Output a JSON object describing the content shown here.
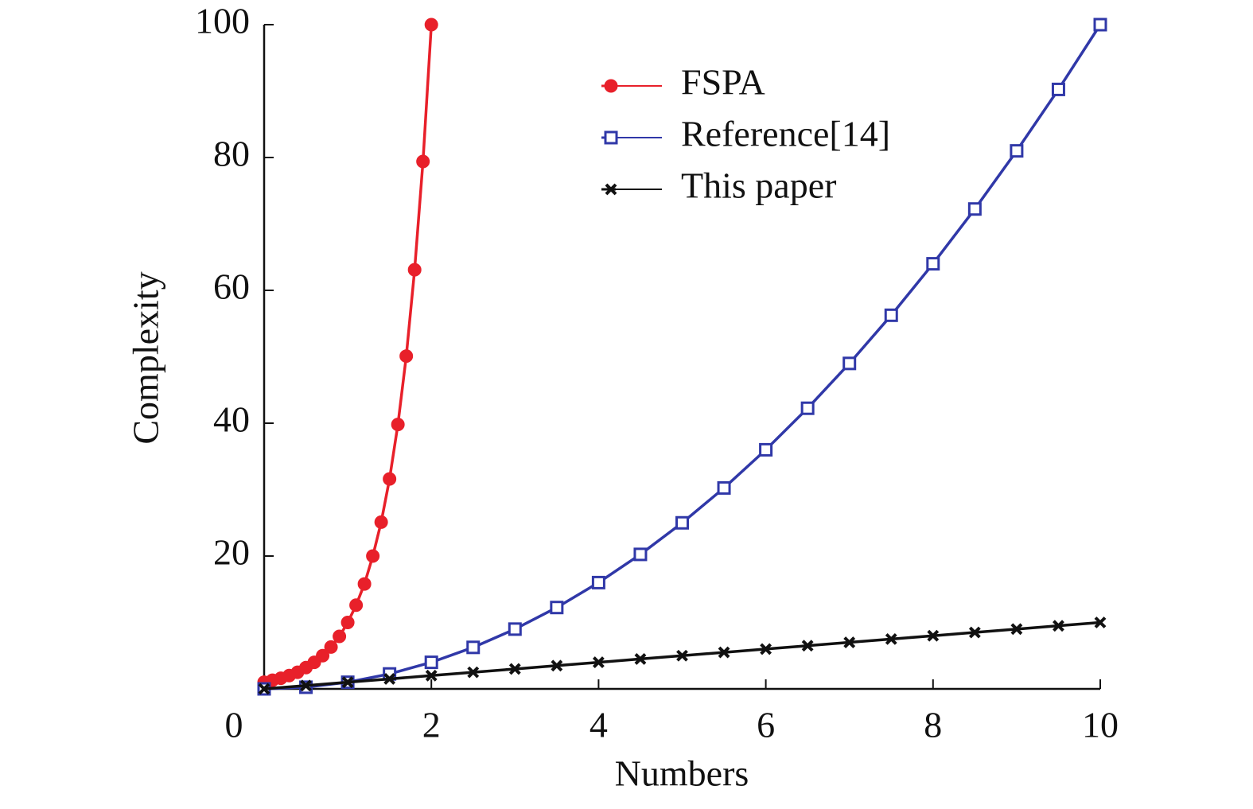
{
  "chart_data": {
    "type": "line",
    "x_label": "Numbers",
    "y_label": "Complexity",
    "xlim": [
      0,
      10
    ],
    "ylim": [
      0,
      100
    ],
    "xticks": [
      0,
      2,
      4,
      6,
      8,
      10
    ],
    "yticks": [
      20,
      40,
      60,
      80,
      100
    ],
    "legend": "upper center",
    "series": [
      {
        "name": "FSPA",
        "color": "#e8202a",
        "marker": "circle",
        "x": [
          0,
          0.1,
          0.2,
          0.3,
          0.4,
          0.5,
          0.6,
          0.7,
          0.8,
          0.9,
          1.0,
          1.1,
          1.2,
          1.3,
          1.4,
          1.5,
          1.6,
          1.7,
          1.8,
          1.9,
          2.0
        ],
        "values": [
          1,
          1.3,
          1.6,
          2.0,
          2.5,
          3.2,
          4.0,
          5.0,
          6.3,
          7.9,
          10,
          12.6,
          15.8,
          20,
          25.1,
          31.6,
          39.8,
          50.1,
          63.1,
          79.4,
          100
        ]
      },
      {
        "name": "Reference[14]",
        "color": "#3038a8",
        "marker": "square",
        "x": [
          0,
          0.5,
          1,
          1.5,
          2,
          2.5,
          3,
          3.5,
          4,
          4.5,
          5,
          5.5,
          6,
          6.5,
          7,
          7.5,
          8,
          8.5,
          9,
          9.5,
          10
        ],
        "values": [
          0,
          0.25,
          1,
          2.25,
          4,
          6.25,
          9,
          12.25,
          16,
          20.25,
          25,
          30.25,
          36,
          42.25,
          49,
          56.25,
          64,
          72.25,
          81,
          90.25,
          100
        ]
      },
      {
        "name": "This paper",
        "color": "#111111",
        "marker": "x",
        "x": [
          0,
          0.5,
          1,
          1.5,
          2,
          2.5,
          3,
          3.5,
          4,
          4.5,
          5,
          5.5,
          6,
          6.5,
          7,
          7.5,
          8,
          8.5,
          9,
          9.5,
          10
        ],
        "values": [
          0,
          0.5,
          1,
          1.5,
          2,
          2.5,
          3,
          3.5,
          4,
          4.5,
          5,
          5.5,
          6,
          6.5,
          7,
          7.5,
          8,
          8.5,
          9,
          9.5,
          10
        ]
      }
    ]
  }
}
